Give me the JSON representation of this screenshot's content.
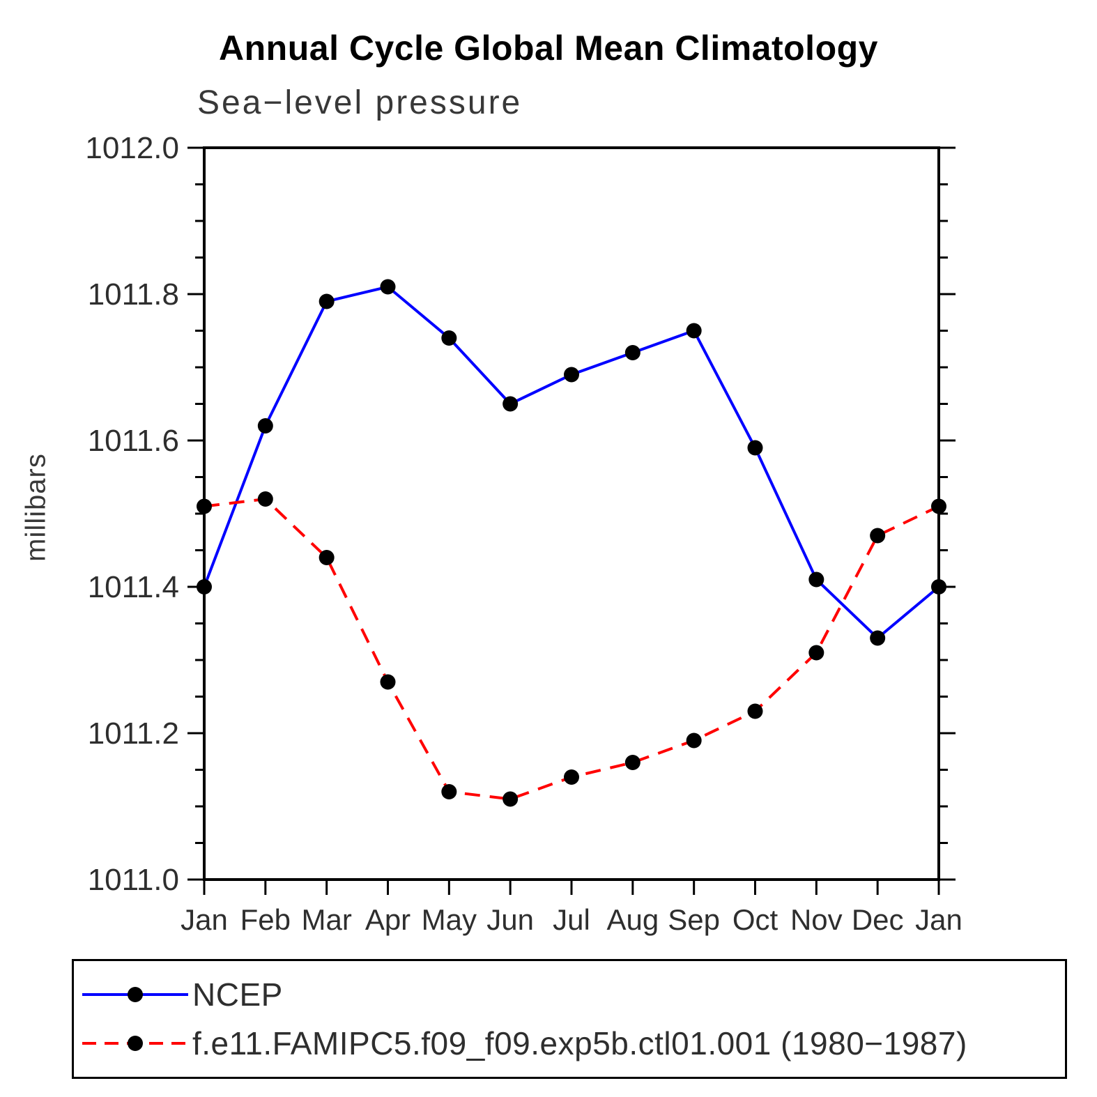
{
  "chart_data": {
    "type": "line",
    "title": "Annual Cycle Global Mean Climatology",
    "subtitle": "Sea−level pressure",
    "xlabel": "",
    "ylabel": "millibars",
    "categories": [
      "Jan",
      "Feb",
      "Mar",
      "Apr",
      "May",
      "Jun",
      "Jul",
      "Aug",
      "Sep",
      "Oct",
      "Nov",
      "Dec",
      "Jan"
    ],
    "ylim": [
      1011.0,
      1012.0
    ],
    "y_major_step": 0.2,
    "y_minor_step": 0.05,
    "grid": false,
    "legend_position": "bottom",
    "marker_color": "#000000",
    "axis_color": "#000000",
    "series": [
      {
        "name": "NCEP",
        "color": "#0000ff",
        "line_style": "solid",
        "values": [
          1011.4,
          1011.62,
          1011.79,
          1011.81,
          1011.74,
          1011.65,
          1011.69,
          1011.72,
          1011.75,
          1011.59,
          1011.41,
          1011.33,
          1011.4
        ]
      },
      {
        "name": "f.e11.FAMIPC5.f09_f09.exp5b.ctl01.001 (1980−1987)",
        "color": "#ff0000",
        "line_style": "dashed",
        "values": [
          1011.51,
          1011.52,
          1011.44,
          1011.27,
          1011.12,
          1011.11,
          1011.14,
          1011.16,
          1011.19,
          1011.23,
          1011.31,
          1011.47,
          1011.51
        ]
      }
    ]
  }
}
